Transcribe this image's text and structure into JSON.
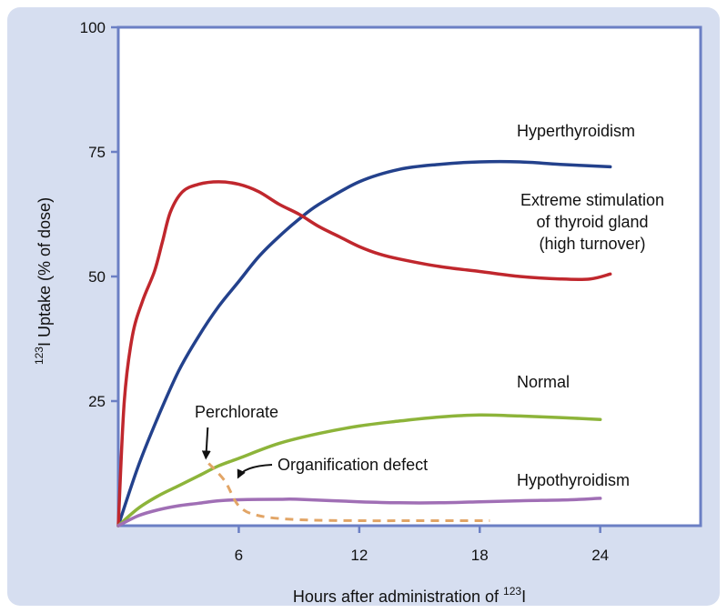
{
  "chart_data": {
    "type": "line",
    "xlabel": "Hours after administration of ¹²³I",
    "xlabel_parts": {
      "prefix": "Hours after administration of ",
      "sup": "123",
      "suffix": "I"
    },
    "ylabel": "¹²³I Uptake (% of dose)",
    "ylabel_parts": {
      "sup": "123",
      "text": "I Uptake (% of dose)"
    },
    "xlim": [
      0,
      29
    ],
    "ylim": [
      0,
      100
    ],
    "x_ticks": [
      6,
      12,
      18,
      24
    ],
    "y_ticks": [
      25,
      50,
      75,
      100
    ],
    "grid": false,
    "series": [
      {
        "name": "Hyperthyroidism",
        "color": "#23418c",
        "style": "solid",
        "points": [
          [
            0,
            0
          ],
          [
            1,
            12
          ],
          [
            2,
            22
          ],
          [
            3,
            31
          ],
          [
            4,
            38
          ],
          [
            5,
            44
          ],
          [
            6,
            49
          ],
          [
            7,
            54
          ],
          [
            8,
            58
          ],
          [
            9,
            61.5
          ],
          [
            10,
            64.5
          ],
          [
            12,
            69
          ],
          [
            14,
            71.5
          ],
          [
            16,
            72.5
          ],
          [
            18,
            73
          ],
          [
            20,
            73
          ],
          [
            22,
            72.5
          ],
          [
            24.5,
            72
          ]
        ]
      },
      {
        "name": "Extreme stimulation of thyroid gland (high turnover)",
        "label_lines": [
          "Extreme stimulation",
          "of thyroid gland",
          "(high turnover)"
        ],
        "color": "#c0272d",
        "style": "solid",
        "points": [
          [
            0,
            0
          ],
          [
            0.3,
            25
          ],
          [
            0.7,
            38
          ],
          [
            1.2,
            45
          ],
          [
            1.8,
            51
          ],
          [
            2.2,
            57
          ],
          [
            2.6,
            63
          ],
          [
            3.2,
            67
          ],
          [
            4,
            68.5
          ],
          [
            5,
            69
          ],
          [
            6,
            68.5
          ],
          [
            7,
            67
          ],
          [
            8,
            64.5
          ],
          [
            9,
            62.5
          ],
          [
            10,
            60
          ],
          [
            11,
            58
          ],
          [
            12,
            56
          ],
          [
            13,
            54.5
          ],
          [
            14,
            53.5
          ],
          [
            16,
            52
          ],
          [
            18,
            51
          ],
          [
            20,
            50
          ],
          [
            22,
            49.5
          ],
          [
            23.5,
            49.5
          ],
          [
            24.5,
            50.5
          ]
        ]
      },
      {
        "name": "Normal",
        "color": "#8db43a",
        "style": "solid",
        "points": [
          [
            0,
            0
          ],
          [
            1,
            3.5
          ],
          [
            2,
            6
          ],
          [
            3,
            8
          ],
          [
            4,
            10
          ],
          [
            5,
            12
          ],
          [
            6,
            13.5
          ],
          [
            8,
            16.5
          ],
          [
            10,
            18.5
          ],
          [
            12,
            20
          ],
          [
            14,
            21
          ],
          [
            16,
            21.8
          ],
          [
            18,
            22.2
          ],
          [
            20,
            22
          ],
          [
            22,
            21.7
          ],
          [
            24,
            21.3
          ]
        ]
      },
      {
        "name": "Hypothyroidism",
        "color": "#a06fb5",
        "style": "solid",
        "points": [
          [
            0,
            0
          ],
          [
            1,
            2
          ],
          [
            2,
            3.2
          ],
          [
            3,
            4
          ],
          [
            4,
            4.5
          ],
          [
            5,
            5
          ],
          [
            6,
            5.2
          ],
          [
            8,
            5.3
          ],
          [
            9,
            5.3
          ],
          [
            12,
            4.8
          ],
          [
            14,
            4.6
          ],
          [
            16,
            4.6
          ],
          [
            18,
            4.8
          ],
          [
            20,
            5
          ],
          [
            22.5,
            5.2
          ],
          [
            24,
            5.5
          ]
        ]
      },
      {
        "name": "Organification defect",
        "color": "#e2a566",
        "style": "dashed",
        "points": [
          [
            4.5,
            12.5
          ],
          [
            5.3,
            9
          ],
          [
            6,
            4
          ],
          [
            7,
            2
          ],
          [
            9,
            1.2
          ],
          [
            12,
            1
          ],
          [
            15,
            1
          ],
          [
            18.5,
            1
          ]
        ]
      }
    ],
    "annotations": [
      {
        "text": "Perchlorate",
        "x": 4.5,
        "y": 12.5,
        "arrow": true
      },
      {
        "text": "Organification defect",
        "x": 5.7,
        "y": 9,
        "arrow": true
      }
    ]
  }
}
